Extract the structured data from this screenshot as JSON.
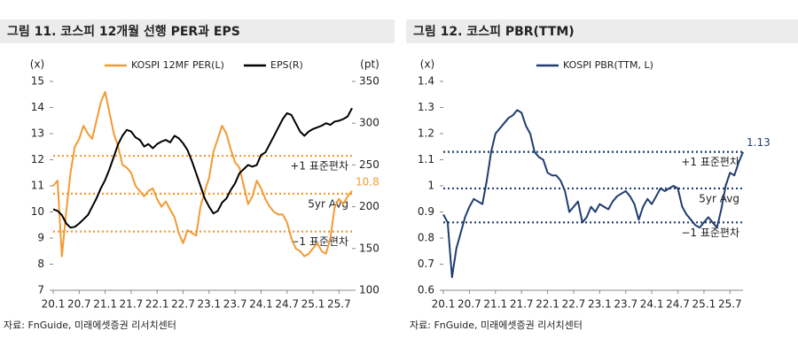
{
  "chart_data": [
    {
      "type": "line",
      "title": "그림 11. 코스피 12개월 선행 PER과 EPS",
      "y_unit": "(x)",
      "y2_unit": "(pt)",
      "source": "자료: FnGuide, 미래에셋증권 리서치센터",
      "legend": "top",
      "categories": [
        "20.1",
        null,
        null,
        null,
        null,
        null,
        "20.7",
        null,
        null,
        null,
        null,
        null,
        "21.1",
        null,
        null,
        null,
        null,
        null,
        "21.7",
        null,
        null,
        null,
        null,
        null,
        "22.1",
        null,
        null,
        null,
        null,
        null,
        "22.7",
        null,
        null,
        null,
        null,
        null,
        "23.1",
        null,
        null,
        null,
        null,
        null,
        "23.7",
        null,
        null,
        null,
        null,
        null,
        "24.1",
        null,
        null,
        null,
        null,
        null,
        "24.7",
        null,
        null,
        null,
        null,
        null,
        "25.1",
        null,
        null,
        null,
        null,
        null,
        "25.7",
        null,
        null,
        null
      ],
      "ylim": [
        7,
        15
      ],
      "yticks": [
        7,
        8,
        9,
        10,
        11,
        12,
        13,
        14,
        15
      ],
      "y2lim": [
        100,
        350
      ],
      "y2ticks": [
        100,
        150,
        200,
        250,
        300,
        350
      ],
      "series": [
        {
          "name": "KOSPI 12MF PER(L)",
          "color": "#f39a32",
          "label_last": true,
          "values": [
            11,
            11.2,
            8.3,
            10,
            11.5,
            12.5,
            12.8,
            13.3,
            13,
            12.8,
            13.5,
            14.2,
            14.6,
            13.8,
            13,
            12.5,
            11.8,
            11.7,
            11.5,
            11,
            10.8,
            10.6,
            10.8,
            10.9,
            10.5,
            10.2,
            10.4,
            10.1,
            9.8,
            9.2,
            8.8,
            9.3,
            9.2,
            9.1,
            10.2,
            10.8,
            11.3,
            12.3,
            12.8,
            13.3,
            13,
            12.4,
            11.9,
            11.7,
            11,
            10.3,
            10.6,
            11.2,
            10.9,
            10.5,
            10.2,
            10,
            9.9,
            9.9,
            9.6,
            9,
            8.6,
            8.5,
            8.3,
            8.4,
            8.6,
            8.8,
            8.5,
            8.4,
            9,
            10.2,
            10.5,
            10.3,
            10.6,
            10.8
          ]
        },
        {
          "name": "EPS(R)",
          "color": "#000000",
          "axis": "y2",
          "values": [
            197,
            195,
            190,
            180,
            175,
            176,
            180,
            185,
            190,
            200,
            210,
            222,
            232,
            245,
            260,
            275,
            285,
            292,
            290,
            283,
            280,
            272,
            275,
            270,
            275,
            278,
            280,
            277,
            285,
            282,
            276,
            268,
            255,
            240,
            225,
            210,
            200,
            192,
            195,
            205,
            210,
            220,
            228,
            240,
            245,
            250,
            248,
            250,
            262,
            265,
            275,
            285,
            295,
            305,
            312,
            310,
            300,
            290,
            285,
            290,
            293,
            295,
            297,
            300,
            298,
            302,
            303,
            305,
            308,
            318
          ]
        }
      ],
      "hlines": [
        {
          "value": 12.15,
          "label": "+1 표준편차"
        },
        {
          "value": 10.7,
          "label": "5yr Avg"
        },
        {
          "value": 9.25,
          "label": "−1 표준편차"
        }
      ]
    },
    {
      "type": "line",
      "title": "그림 12. 코스피 PBR(TTM)",
      "y_unit": "(x)",
      "source": "자료: FnGuide, 미래에셋증권 리서치센터",
      "legend": "top",
      "categories": [
        "20.1",
        null,
        null,
        null,
        null,
        null,
        "20.7",
        null,
        null,
        null,
        null,
        null,
        "21.1",
        null,
        null,
        null,
        null,
        null,
        "21.7",
        null,
        null,
        null,
        null,
        null,
        "22.1",
        null,
        null,
        null,
        null,
        null,
        "22.7",
        null,
        null,
        null,
        null,
        null,
        "23.1",
        null,
        null,
        null,
        null,
        null,
        "23.7",
        null,
        null,
        null,
        null,
        null,
        "24.1",
        null,
        null,
        null,
        null,
        null,
        "24.7",
        null,
        null,
        null,
        null,
        null,
        "25.1",
        null,
        null,
        null,
        null,
        null,
        "25.7",
        null,
        null,
        null
      ],
      "ylim": [
        0.6,
        1.4
      ],
      "yticks": [
        0.6,
        0.7,
        0.8,
        0.9,
        1,
        1.1,
        1.2,
        1.3,
        1.4
      ],
      "series": [
        {
          "name": "KOSPI PBR(TTM, L)",
          "color": "#1f3d70",
          "label_last": true,
          "values": [
            0.89,
            0.86,
            0.65,
            0.76,
            0.82,
            0.88,
            0.92,
            0.95,
            0.94,
            0.93,
            1.02,
            1.13,
            1.2,
            1.22,
            1.24,
            1.26,
            1.27,
            1.29,
            1.28,
            1.23,
            1.2,
            1.13,
            1.11,
            1.1,
            1.05,
            1.04,
            1.04,
            1.02,
            0.98,
            0.9,
            0.92,
            0.94,
            0.86,
            0.88,
            0.92,
            0.9,
            0.93,
            0.92,
            0.91,
            0.94,
            0.96,
            0.97,
            0.98,
            0.96,
            0.93,
            0.87,
            0.92,
            0.95,
            0.93,
            0.96,
            0.99,
            0.98,
            0.99,
            1,
            0.99,
            0.92,
            0.89,
            0.87,
            0.85,
            0.84,
            0.86,
            0.88,
            0.86,
            0.84,
            0.91,
            1,
            1.05,
            1.04,
            1.09,
            1.13
          ]
        }
      ],
      "hlines": [
        {
          "value": 1.13,
          "label": "+1 표준편차"
        },
        {
          "value": 0.99,
          "label": "5yr Avg"
        },
        {
          "value": 0.86,
          "label": "−1 표준편차"
        }
      ]
    }
  ]
}
